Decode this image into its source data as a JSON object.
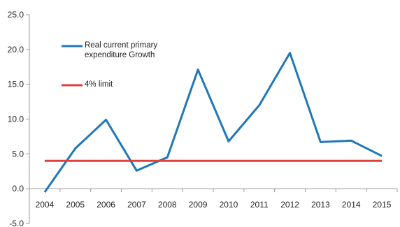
{
  "chart_data": {
    "type": "line",
    "title": "",
    "xlabel": "",
    "ylabel": "",
    "categories": [
      "2004",
      "2005",
      "2006",
      "2007",
      "2008",
      "2009",
      "2010",
      "2011",
      "2012",
      "2013",
      "2014",
      "2015"
    ],
    "ylim": [
      -5,
      25
    ],
    "yticks": [
      "25.0",
      "20.0",
      "15.0",
      "10.0",
      "5.0",
      "0.0",
      "-5.0"
    ],
    "grid": false,
    "legend_position": "top-left",
    "series": [
      {
        "name": "Real current primary expenditure Growth",
        "legend_lines": [
          "Real current primary",
          "expenditure Growth"
        ],
        "color": "#1f78b8",
        "values": [
          -0.5,
          5.8,
          9.9,
          2.6,
          4.5,
          17.1,
          6.8,
          12.0,
          19.5,
          6.7,
          6.9,
          4.7
        ]
      },
      {
        "name": "4% limit",
        "legend_lines": [
          "4% limit"
        ],
        "color": "#e0403a",
        "values": [
          4,
          4,
          4,
          4,
          4,
          4,
          4,
          4,
          4,
          4,
          4,
          4
        ]
      }
    ]
  }
}
